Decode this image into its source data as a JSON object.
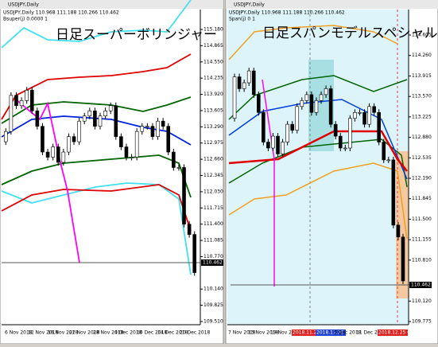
{
  "windows": [
    {
      "title": "USDJPY,Daily",
      "header": "USDJPY,Daily 110.968 111.188 110.266 110.462",
      "indicator": "Bsuper(j) 0.0000 1",
      "overlay": "日足スーパーボリンジャー",
      "current_price": "110.462",
      "price_labels": [
        "115.180",
        "114.865",
        "114.550",
        "114.235",
        "113.920",
        "113.605",
        "113.290",
        "112.975",
        "112.660",
        "112.345",
        "112.030",
        "111.715",
        "111.400",
        "111.085",
        "110.770",
        "110.140",
        "109.825",
        "109.510"
      ],
      "dates": [
        "6 Nov 2018",
        "12 Nov 2018",
        "16 Nov 2018",
        "22 Nov 2018",
        "28 Nov 2018",
        "4 Dec 2018",
        "10 Dec 2018",
        "14 Dec 2018",
        "20 Dec 2018"
      ],
      "open": 113.0,
      "closes": [
        113.2,
        113.9,
        113.7,
        113.8,
        114.0,
        113.6,
        113.3,
        112.8,
        112.7,
        112.9,
        112.6,
        112.8,
        113.1,
        113.0,
        113.4,
        113.5,
        113.6,
        113.3,
        113.5,
        113.6,
        113.7,
        113.1,
        112.9,
        112.7,
        112.7,
        113.2,
        113.3,
        113.3,
        113.1,
        113.4,
        113.3,
        112.8,
        112.5,
        112.5,
        111.4,
        111.2,
        110.46
      ]
    },
    {
      "title": "USDJPY,Daily",
      "header": "USDJPY,Daily 110.968 111.188 110.266 110.462",
      "indicator": "Span(j) 0 1",
      "overlay": "日足スパンモデルスペシャル",
      "current_price": "110.462",
      "price_labels": [
        "114.605",
        "114.260",
        "113.915",
        "113.570",
        "113.225",
        "112.880",
        "112.535",
        "112.190",
        "111.845",
        "111.500",
        "111.155",
        "110.810",
        "110.120",
        "109.775"
      ],
      "dates": [
        "7 Nov 2018",
        "13 Nov 2018",
        "19 Nov 2018",
        "2018.11.23 00:00",
        "2018.11.28 00:00",
        "5 Dec 2018",
        "11 Dec 2018",
        "2018.12.25 00:00"
      ],
      "open": 113.2,
      "closes": [
        113.9,
        113.7,
        113.8,
        114.0,
        113.6,
        113.3,
        112.8,
        112.7,
        112.9,
        112.6,
        112.8,
        113.1,
        113.0,
        113.4,
        113.5,
        113.6,
        113.3,
        113.5,
        113.6,
        113.7,
        113.1,
        112.9,
        112.7,
        112.7,
        113.2,
        113.3,
        113.3,
        113.1,
        113.4,
        113.3,
        112.8,
        112.5,
        112.5,
        111.4,
        111.2,
        110.46
      ]
    }
  ]
}
